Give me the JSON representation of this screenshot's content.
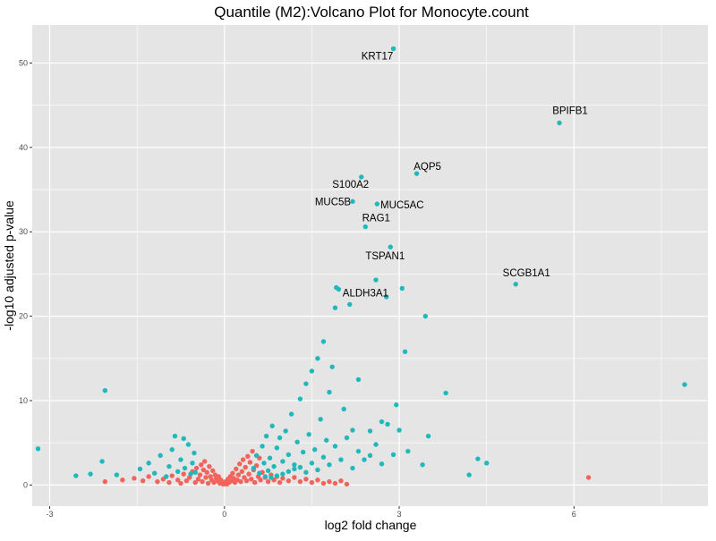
{
  "chart_data": {
    "type": "scatter",
    "title": "Quantile (M2):Volcano Plot for Monocyte.count",
    "xlabel": "log2 fold change",
    "ylabel": "-log10 adjusted p-value",
    "xlim": [
      -3.3,
      8.3
    ],
    "ylim": [
      -2.5,
      54.5
    ],
    "x_ticks": [
      -3,
      0,
      3,
      6
    ],
    "x_tick_labels": [
      "-3",
      "0",
      "3",
      "6"
    ],
    "y_ticks": [
      0,
      10,
      20,
      30,
      40,
      50
    ],
    "y_tick_labels": [
      "0",
      "10",
      "20",
      "30",
      "40",
      "50"
    ],
    "grid": true,
    "background": "#e5e5e5",
    "grid_color": "#ffffff",
    "colors": {
      "significant": "#1fb8bb",
      "not_significant": "#f2635c"
    },
    "series": [
      {
        "key": "not_significant",
        "points": [
          [
            -2.05,
            0.4
          ],
          [
            -1.75,
            0.6
          ],
          [
            -1.55,
            0.8
          ],
          [
            -1.4,
            0.5
          ],
          [
            -1.3,
            1.0
          ],
          [
            -1.15,
            0.4
          ],
          [
            -1.05,
            0.7
          ],
          [
            -0.95,
            0.3
          ],
          [
            -0.9,
            1.1
          ],
          [
            -0.8,
            0.6
          ],
          [
            -0.75,
            0.2
          ],
          [
            -0.7,
            1.3
          ],
          [
            -0.65,
            0.5
          ],
          [
            -0.6,
            0.9
          ],
          [
            -0.55,
            1.6
          ],
          [
            -0.5,
            0.3
          ],
          [
            -0.48,
            2.0
          ],
          [
            -0.45,
            0.7
          ],
          [
            -0.42,
            1.2
          ],
          [
            -0.4,
            2.4
          ],
          [
            -0.38,
            0.4
          ],
          [
            -0.36,
            1.8
          ],
          [
            -0.34,
            2.8
          ],
          [
            -0.32,
            0.9
          ],
          [
            -0.3,
            1.5
          ],
          [
            -0.28,
            0.2
          ],
          [
            -0.26,
            2.2
          ],
          [
            -0.24,
            1.0
          ],
          [
            -0.22,
            0.6
          ],
          [
            -0.2,
            1.7
          ],
          [
            -0.18,
            0.3
          ],
          [
            -0.16,
            1.2
          ],
          [
            -0.14,
            0.8
          ],
          [
            -0.12,
            0.5
          ],
          [
            -0.1,
            1.0
          ],
          [
            -0.08,
            0.2
          ],
          [
            -0.06,
            0.6
          ],
          [
            -0.04,
            0.3
          ],
          [
            -0.02,
            0.1
          ],
          [
            0.0,
            0.2
          ],
          [
            0.02,
            0.4
          ],
          [
            0.04,
            0.1
          ],
          [
            0.06,
            0.7
          ],
          [
            0.08,
            0.3
          ],
          [
            0.1,
            1.0
          ],
          [
            0.12,
            0.5
          ],
          [
            0.14,
            1.4
          ],
          [
            0.16,
            0.8
          ],
          [
            0.18,
            0.3
          ],
          [
            0.2,
            1.9
          ],
          [
            0.22,
            0.6
          ],
          [
            0.24,
            1.2
          ],
          [
            0.26,
            2.5
          ],
          [
            0.28,
            0.4
          ],
          [
            0.3,
            1.6
          ],
          [
            0.32,
            3.0
          ],
          [
            0.34,
            0.9
          ],
          [
            0.36,
            2.1
          ],
          [
            0.38,
            0.5
          ],
          [
            0.4,
            3.4
          ],
          [
            0.42,
            1.3
          ],
          [
            0.44,
            2.7
          ],
          [
            0.46,
            0.7
          ],
          [
            0.48,
            4.0
          ],
          [
            0.5,
            1.8
          ],
          [
            0.52,
            0.3
          ],
          [
            0.55,
            2.3
          ],
          [
            0.58,
            1.0
          ],
          [
            0.6,
            3.2
          ],
          [
            0.62,
            0.6
          ],
          [
            0.65,
            1.5
          ],
          [
            0.7,
            0.9
          ],
          [
            0.75,
            0.4
          ],
          [
            0.8,
            1.2
          ],
          [
            0.85,
            0.6
          ],
          [
            0.9,
            1.0
          ],
          [
            0.95,
            0.3
          ],
          [
            1.0,
            0.8
          ],
          [
            1.1,
            0.5
          ],
          [
            1.2,
            0.9
          ],
          [
            1.3,
            0.4
          ],
          [
            1.4,
            0.7
          ],
          [
            1.5,
            0.3
          ],
          [
            1.6,
            0.6
          ],
          [
            1.7,
            0.2
          ],
          [
            1.8,
            0.4
          ],
          [
            1.9,
            0.2
          ],
          [
            2.0,
            0.5
          ],
          [
            2.1,
            0.1
          ],
          [
            6.25,
            0.9
          ]
        ]
      },
      {
        "key": "significant",
        "points": [
          [
            -3.2,
            4.3
          ],
          [
            -2.55,
            1.1
          ],
          [
            -2.3,
            1.3
          ],
          [
            -2.1,
            2.8
          ],
          [
            -2.05,
            11.2
          ],
          [
            -1.85,
            1.2
          ],
          [
            -1.45,
            1.9
          ],
          [
            -1.3,
            2.6
          ],
          [
            -1.2,
            1.4
          ],
          [
            -1.1,
            3.5
          ],
          [
            -1.0,
            1.0
          ],
          [
            -0.95,
            2.2
          ],
          [
            -0.9,
            4.2
          ],
          [
            -0.85,
            5.8
          ],
          [
            -0.8,
            1.6
          ],
          [
            -0.75,
            3.0
          ],
          [
            -0.7,
            5.5
          ],
          [
            -0.68,
            2.0
          ],
          [
            -0.62,
            4.8
          ],
          [
            -0.58,
            1.3
          ],
          [
            -0.55,
            2.6
          ],
          [
            -0.52,
            3.8
          ],
          [
            -0.5,
            1.5
          ],
          [
            0.5,
            2.0
          ],
          [
            0.55,
            3.5
          ],
          [
            0.6,
            1.4
          ],
          [
            0.65,
            4.6
          ],
          [
            0.68,
            2.6
          ],
          [
            0.72,
            5.8
          ],
          [
            0.75,
            1.7
          ],
          [
            0.78,
            3.2
          ],
          [
            0.82,
            7.0
          ],
          [
            0.85,
            2.2
          ],
          [
            0.9,
            4.4
          ],
          [
            0.95,
            5.6
          ],
          [
            1.0,
            2.8
          ],
          [
            1.05,
            6.4
          ],
          [
            1.1,
            3.6
          ],
          [
            1.15,
            8.4
          ],
          [
            1.2,
            2.4
          ],
          [
            1.25,
            5.1
          ],
          [
            1.3,
            10.2
          ],
          [
            1.35,
            3.9
          ],
          [
            1.4,
            12.0
          ],
          [
            1.45,
            6.0
          ],
          [
            1.5,
            13.5
          ],
          [
            1.55,
            4.2
          ],
          [
            1.6,
            15.0
          ],
          [
            1.65,
            7.8
          ],
          [
            1.7,
            17.0
          ],
          [
            1.75,
            5.3
          ],
          [
            1.8,
            11.0
          ],
          [
            1.85,
            14.0
          ],
          [
            1.9,
            21.0
          ],
          [
            1.92,
            23.4
          ],
          [
            1.96,
            23.2
          ],
          [
            2.05,
            9.0
          ],
          [
            2.15,
            21.4
          ],
          [
            2.2,
            33.6
          ],
          [
            2.35,
            36.5
          ],
          [
            2.2,
            6.5
          ],
          [
            2.3,
            12.5
          ],
          [
            2.42,
            30.6
          ],
          [
            2.5,
            3.5
          ],
          [
            2.6,
            24.3
          ],
          [
            2.62,
            33.3
          ],
          [
            2.7,
            7.5
          ],
          [
            2.78,
            22.3
          ],
          [
            2.85,
            28.2
          ],
          [
            2.9,
            51.7
          ],
          [
            2.95,
            9.5
          ],
          [
            3.05,
            23.3
          ],
          [
            3.1,
            15.8
          ],
          [
            3.15,
            4.0
          ],
          [
            3.3,
            36.9
          ],
          [
            3.4,
            2.4
          ],
          [
            3.45,
            20.0
          ],
          [
            3.5,
            5.8
          ],
          [
            3.8,
            10.9
          ],
          [
            4.2,
            1.2
          ],
          [
            4.35,
            3.1
          ],
          [
            4.5,
            2.6
          ],
          [
            5.0,
            23.8
          ],
          [
            5.75,
            42.9
          ],
          [
            7.9,
            11.9
          ],
          [
            0.7,
            1.0
          ],
          [
            0.8,
            0.9
          ],
          [
            0.9,
            1.1
          ],
          [
            1.0,
            1.3
          ],
          [
            1.1,
            1.6
          ],
          [
            1.2,
            1.9
          ],
          [
            1.3,
            2.1
          ],
          [
            1.4,
            1.5
          ],
          [
            1.5,
            2.6
          ],
          [
            1.6,
            1.8
          ],
          [
            1.7,
            3.3
          ],
          [
            1.8,
            2.4
          ],
          [
            1.9,
            4.6
          ],
          [
            2.0,
            3.0
          ],
          [
            2.1,
            5.6
          ],
          [
            2.2,
            2.0
          ],
          [
            2.3,
            4.0
          ],
          [
            2.4,
            3.0
          ],
          [
            2.5,
            6.4
          ],
          [
            2.6,
            4.8
          ],
          [
            2.7,
            2.5
          ],
          [
            2.8,
            7.2
          ],
          [
            2.9,
            3.6
          ],
          [
            3.0,
            6.5
          ]
        ]
      }
    ],
    "annotations": [
      {
        "label": "KRT17",
        "x": 2.9,
        "y": 51.7
      },
      {
        "label": "BPIFB1",
        "x": 5.75,
        "y": 42.9
      },
      {
        "label": "AQP5",
        "x": 3.3,
        "y": 36.9
      },
      {
        "label": "S100A2",
        "x": 2.35,
        "y": 36.5
      },
      {
        "label": "MUC5B",
        "x": 2.2,
        "y": 33.6
      },
      {
        "label": "MUC5AC",
        "x": 2.62,
        "y": 33.3
      },
      {
        "label": "RAG1",
        "x": 2.42,
        "y": 30.6
      },
      {
        "label": "TSPAN1",
        "x": 2.85,
        "y": 28.2
      },
      {
        "label": "SCGB1A1",
        "x": 5.0,
        "y": 23.8
      },
      {
        "label": "ALDH3A1",
        "x": 1.96,
        "y": 23.2
      }
    ]
  }
}
